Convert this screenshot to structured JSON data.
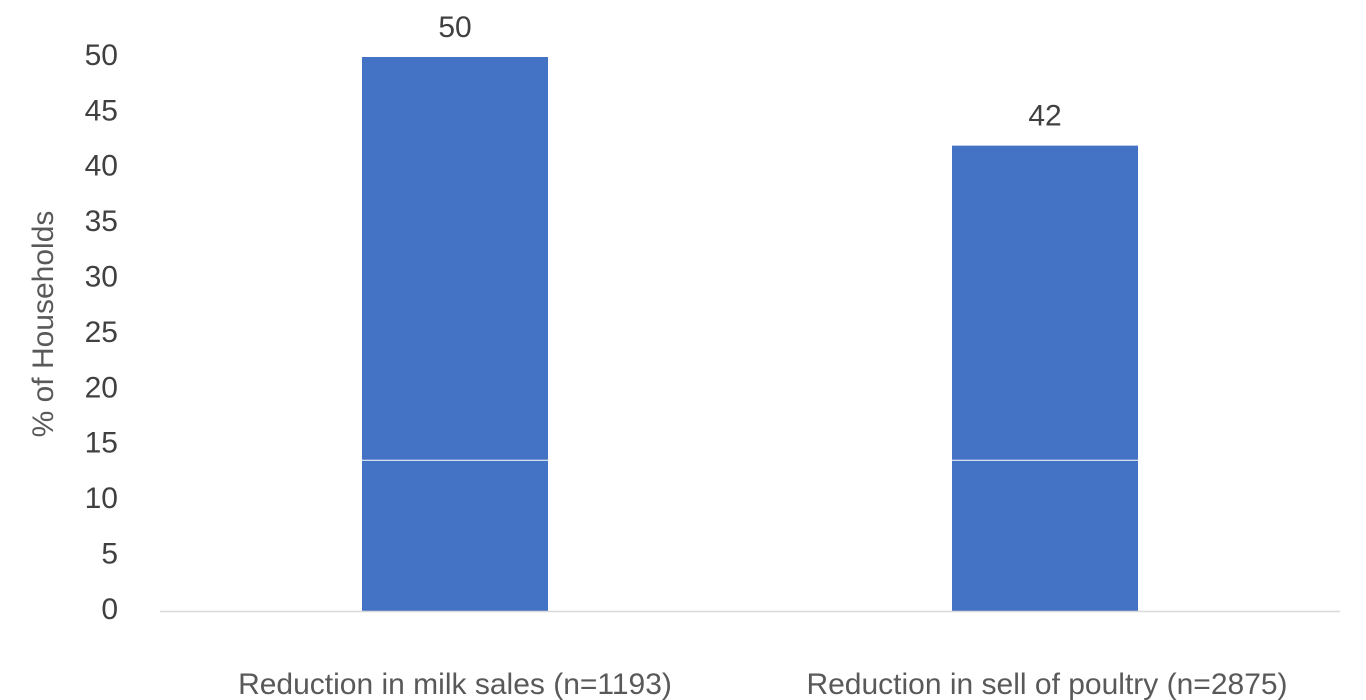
{
  "chart_data": {
    "type": "bar",
    "categories": [
      "Reduction in milk sales (n=1193)",
      "Reduction in sell of poultry (n=2875)"
    ],
    "values": [
      50,
      42
    ],
    "data_labels": [
      "50",
      "42"
    ],
    "title": "",
    "xlabel": "",
    "ylabel": "% of Households",
    "ylim": [
      0,
      50
    ],
    "yticks": [
      0,
      5,
      10,
      15,
      20,
      25,
      30,
      35,
      40,
      45,
      50
    ],
    "grid": false,
    "legend": "none",
    "bar_color": "#4472C4",
    "axis_color": "#D9D9D9"
  }
}
